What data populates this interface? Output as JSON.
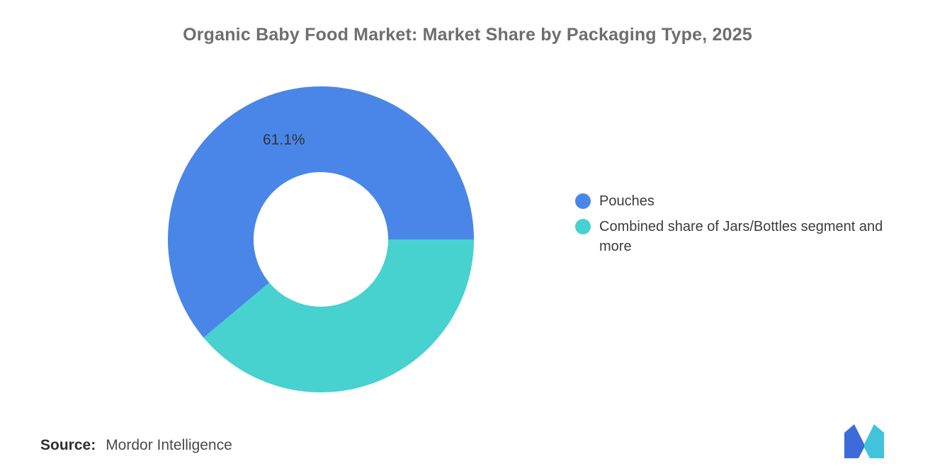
{
  "title": "Organic Baby Food Market: Market Share by Packaging Type, 2025",
  "chart_data": {
    "type": "pie",
    "subtype": "donut",
    "title": "Organic Baby Food Market: Market Share by Packaging Type, 2025",
    "labels": [
      "Pouches",
      "Combined share of Jars/Bottles segment and more"
    ],
    "values": [
      61.1,
      38.9
    ],
    "colors": [
      "#4A86E8",
      "#47D1CF"
    ],
    "data_labels": [
      "61.1%",
      ""
    ],
    "start_angle_deg": 0,
    "direction": "counterclockwise",
    "inner_radius_ratio": 0.44,
    "legend_position": "right",
    "background": "#ffffff"
  },
  "slice_label": "61.1%",
  "legend": {
    "items": [
      {
        "label": "Pouches",
        "color": "#4A86E8"
      },
      {
        "label": "Combined share of Jars/Bottles segment and more",
        "color": "#47D1CF"
      }
    ]
  },
  "source": {
    "prefix": "Source:",
    "text": "Mordor Intelligence"
  },
  "logo": {
    "name": "mordor-intelligence-logo",
    "blue": "#3D6BD9",
    "teal": "#41C3DC"
  }
}
